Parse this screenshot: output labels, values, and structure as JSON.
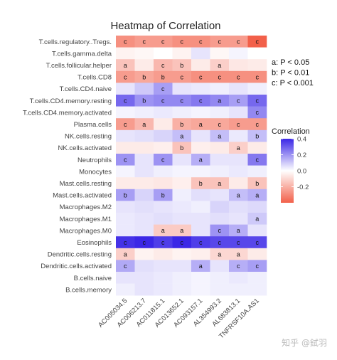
{
  "chart_data": {
    "type": "heatmap",
    "title": "Heatmap of Correlation",
    "columns": [
      "AC005034.5",
      "AC006213.7",
      "AC011815.1",
      "AC013652.1",
      "AC093157.1",
      "AL354993.2",
      "AL683813.1",
      "TNFRSF10A.AS1"
    ],
    "rows": [
      "T.cells.regulatory..Tregs.",
      "T.cells.gamma.delta",
      "T.cells.follicular.helper",
      "T.cells.CD8",
      "T.cells.CD4.naive",
      "T.cells.CD4.memory.resting",
      "T.cells.CD4.memory.activated",
      "Plasma.cells",
      "NK.cells.resting",
      "NK.cells.activated",
      "Neutrophils",
      "Monocytes",
      "Mast.cells.resting",
      "Mast.cells.activated",
      "Macrophages.M2",
      "Macrophages.M1",
      "Macrophages.M0",
      "Eosinophils",
      "Dendritic.cells.resting",
      "Dendritic.cells.activated",
      "B.cells.naive",
      "B.cells.memory"
    ],
    "values": [
      [
        -0.28,
        -0.25,
        -0.25,
        -0.28,
        -0.28,
        -0.25,
        -0.25,
        -0.4
      ],
      [
        -0.03,
        -0.02,
        0.0,
        -0.03,
        0.05,
        -0.02,
        0.02,
        0.0
      ],
      [
        -0.15,
        -0.05,
        -0.18,
        -0.15,
        -0.05,
        -0.12,
        -0.06,
        -0.05
      ],
      [
        -0.25,
        -0.22,
        -0.25,
        -0.25,
        -0.28,
        -0.28,
        -0.28,
        -0.28
      ],
      [
        0.05,
        0.1,
        0.18,
        0.05,
        0.04,
        0.03,
        0.05,
        0.03
      ],
      [
        0.28,
        0.2,
        0.22,
        0.22,
        0.25,
        0.22,
        0.18,
        0.28
      ],
      [
        0.02,
        0.03,
        0.04,
        0.03,
        0.02,
        0.03,
        0.05,
        0.22
      ],
      [
        -0.25,
        -0.18,
        -0.05,
        -0.2,
        -0.22,
        -0.22,
        -0.25,
        -0.25
      ],
      [
        0.05,
        0.06,
        0.08,
        0.12,
        0.05,
        0.12,
        0.04,
        0.12
      ],
      [
        -0.05,
        -0.05,
        -0.04,
        -0.15,
        -0.04,
        -0.05,
        -0.12,
        -0.05
      ],
      [
        0.2,
        0.05,
        0.2,
        0.05,
        0.15,
        0.05,
        0.05,
        0.25
      ],
      [
        0.02,
        0.05,
        0.03,
        0.02,
        0.02,
        0.03,
        0.04,
        0.03
      ],
      [
        -0.05,
        -0.05,
        -0.06,
        -0.04,
        -0.15,
        -0.15,
        -0.05,
        -0.15
      ],
      [
        0.18,
        0.08,
        0.18,
        0.03,
        0.06,
        0.05,
        0.12,
        0.15
      ],
      [
        0.05,
        0.06,
        0.05,
        0.04,
        0.03,
        0.08,
        0.06,
        0.07
      ],
      [
        0.04,
        0.05,
        0.06,
        0.05,
        0.05,
        0.06,
        0.05,
        0.1
      ],
      [
        0.04,
        0.05,
        -0.13,
        -0.13,
        0.05,
        0.2,
        0.15,
        0.05
      ],
      [
        0.38,
        0.4,
        0.36,
        0.42,
        0.36,
        0.34,
        0.34,
        0.34
      ],
      [
        -0.12,
        -0.03,
        -0.05,
        -0.03,
        -0.04,
        -0.1,
        -0.1,
        -0.05
      ],
      [
        0.16,
        0.06,
        0.05,
        0.05,
        0.15,
        0.05,
        0.15,
        0.18
      ],
      [
        0.05,
        0.05,
        0.04,
        0.03,
        0.02,
        0.03,
        0.04,
        0.03
      ],
      [
        0.03,
        0.05,
        0.04,
        0.03,
        0.02,
        0.03,
        0.03,
        0.03
      ]
    ],
    "significance": [
      [
        "c",
        "c",
        "c",
        "c",
        "c",
        "c",
        "c",
        "c"
      ],
      [
        "",
        "",
        "",
        "",
        "",
        "",
        "",
        ""
      ],
      [
        "a",
        "",
        "c",
        "b",
        "",
        "a",
        "",
        ""
      ],
      [
        "c",
        "b",
        "b",
        "c",
        "c",
        "c",
        "c",
        "c"
      ],
      [
        "",
        "",
        "c",
        "",
        "",
        "",
        "",
        ""
      ],
      [
        "c",
        "b",
        "c",
        "c",
        "c",
        "a",
        "c",
        "c"
      ],
      [
        "",
        "",
        "",
        "",
        "",
        "",
        "",
        "c"
      ],
      [
        "c",
        "a",
        "",
        "b",
        "a",
        "c",
        "c",
        "c"
      ],
      [
        "",
        "",
        "",
        "a",
        "",
        "a",
        "",
        "b"
      ],
      [
        "",
        "",
        "",
        "b",
        "",
        "",
        "a",
        ""
      ],
      [
        "c",
        "",
        "c",
        "",
        "a",
        "",
        "",
        "c"
      ],
      [
        "",
        "",
        "",
        "",
        "",
        "",
        "",
        ""
      ],
      [
        "",
        "",
        "",
        "",
        "b",
        "a",
        "",
        "b"
      ],
      [
        "b",
        "",
        "b",
        "",
        "",
        "",
        "a",
        "a"
      ],
      [
        "",
        "",
        "",
        "",
        "",
        "",
        "",
        ""
      ],
      [
        "",
        "",
        "",
        "",
        "",
        "",
        "",
        "a"
      ],
      [
        "",
        "",
        "a",
        "a",
        "",
        "c",
        "a",
        ""
      ],
      [
        "c",
        "c",
        "c",
        "c",
        "c",
        "c",
        "c",
        "c"
      ],
      [
        "a",
        "",
        "",
        "",
        "",
        "a",
        "a",
        ""
      ],
      [
        "c",
        "",
        "",
        "",
        "a",
        "",
        "c",
        "c"
      ],
      [
        "",
        "",
        "",
        "",
        "",
        "",
        "",
        ""
      ],
      [
        "",
        "",
        "",
        "",
        "",
        "",
        "",
        ""
      ]
    ],
    "significance_note": [
      "a: P < 0.05",
      "b: P < 0.01",
      "c: P < 0.001"
    ],
    "legend": {
      "title": "Correlation",
      "ticks": [
        0.4,
        0.2,
        0.0,
        -0.2
      ],
      "tick_labels": [
        "0.4",
        "0.2",
        "0.0",
        "-0.2"
      ],
      "range": [
        -0.4,
        0.4
      ],
      "low_color": "#f2604a",
      "mid_color": "#ffffff",
      "high_color": "#3b27e6",
      "placement": "right"
    }
  },
  "watermark": "知乎 @鉽羽"
}
